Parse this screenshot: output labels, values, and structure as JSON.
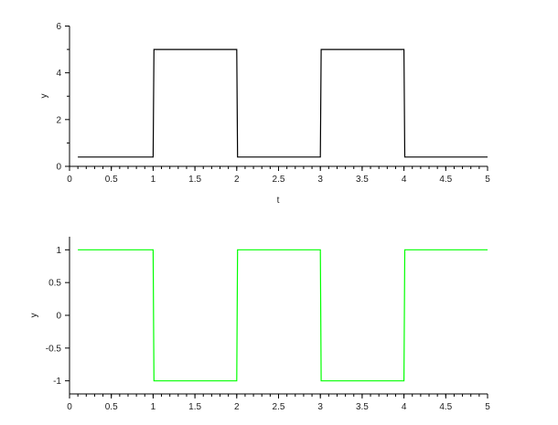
{
  "chart_data": [
    {
      "type": "line",
      "title": "",
      "xlabel": "t",
      "ylabel": "y",
      "xlim": [
        0,
        5
      ],
      "ylim": [
        0,
        6
      ],
      "xticks": [
        "0",
        "0.5",
        "1",
        "1.5",
        "2",
        "2.5",
        "3",
        "3.5",
        "4",
        "4.5",
        "5"
      ],
      "yticks": [
        "0",
        "2",
        "4",
        "6"
      ],
      "grid": false,
      "series": [
        {
          "color": "#000000",
          "x": [
            0.1,
            1.0,
            1.01,
            2.0,
            2.01,
            3.0,
            3.01,
            4.0,
            4.01,
            5.0
          ],
          "y": [
            0.4,
            0.4,
            5,
            5,
            0.4,
            0.4,
            5,
            5,
            0.4,
            0.4
          ]
        }
      ]
    },
    {
      "type": "line",
      "title": "",
      "xlabel": "",
      "ylabel": "y",
      "xlim": [
        0,
        5
      ],
      "ylim": [
        -1.2,
        1.2
      ],
      "xticks": [
        "0",
        "0.5",
        "1",
        "1.5",
        "2",
        "2.5",
        "3",
        "3.5",
        "4",
        "4.5",
        "5"
      ],
      "yticks": [
        "-1",
        "-0.5",
        "0",
        "0.5",
        "1"
      ],
      "grid": false,
      "series": [
        {
          "color": "#00ff00",
          "x": [
            0.1,
            1.0,
            1.01,
            2.0,
            2.01,
            3.0,
            3.01,
            4.0,
            4.01,
            5.0
          ],
          "y": [
            1,
            1,
            -1,
            -1,
            1,
            1,
            -1,
            -1,
            1,
            1
          ]
        }
      ]
    }
  ]
}
